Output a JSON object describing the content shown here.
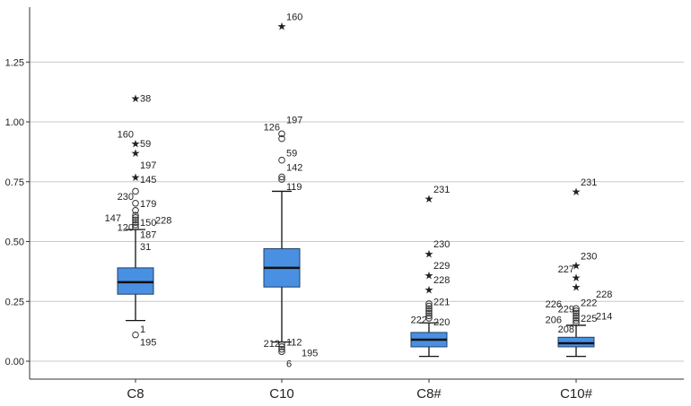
{
  "chart_data": {
    "type": "boxplot",
    "title": "",
    "xlabel": "",
    "ylabel": "",
    "ylim": [
      -0.05,
      1.45
    ],
    "yticks": [
      0.0,
      0.25,
      0.5,
      0.75,
      1.0,
      1.25
    ],
    "ytick_labels": [
      "0.00",
      "0.25",
      "0.50",
      "0.75",
      "1.00",
      "1.25"
    ],
    "grid": true,
    "categories": [
      "C8",
      "C10",
      "C8#",
      "C10#"
    ],
    "box_color": "#4a90e2",
    "boxes": [
      {
        "name": "C8",
        "q1": 0.28,
        "median": 0.33,
        "q3": 0.39,
        "whisker_low": 0.17,
        "whisker_high": 0.55,
        "circle_outliers": [
          0.11,
          0.56,
          0.57,
          0.58,
          0.59,
          0.6,
          0.61,
          0.63,
          0.66,
          0.71
        ],
        "star_outliers": [
          0.77,
          0.87,
          0.91,
          1.1
        ],
        "labels": [
          {
            "text": "38",
            "y": 1.1,
            "side": "right"
          },
          {
            "text": "160",
            "y": 0.95,
            "side": "left"
          },
          {
            "text": "59",
            "y": 0.91,
            "side": "right"
          },
          {
            "text": "197",
            "y": 0.82,
            "side": "right"
          },
          {
            "text": "145",
            "y": 0.76,
            "side": "right"
          },
          {
            "text": "230",
            "y": 0.69,
            "side": "left"
          },
          {
            "text": "179",
            "y": 0.66,
            "side": "right"
          },
          {
            "text": "147",
            "y": 0.6,
            "side": "farleft"
          },
          {
            "text": "228",
            "y": 0.59,
            "side": "far"
          },
          {
            "text": "150",
            "y": 0.58,
            "side": "right"
          },
          {
            "text": "120",
            "y": 0.56,
            "side": "left"
          },
          {
            "text": "187",
            "y": 0.53,
            "side": "right"
          },
          {
            "text": "31",
            "y": 0.48,
            "side": "right"
          },
          {
            "text": "1",
            "y": 0.135,
            "side": "right"
          },
          {
            "text": "195",
            "y": 0.08,
            "side": "right"
          }
        ]
      },
      {
        "name": "C10",
        "q1": 0.31,
        "median": 0.39,
        "q3": 0.47,
        "whisker_low": 0.08,
        "whisker_high": 0.71,
        "circle_outliers": [
          0.04,
          0.05,
          0.06,
          0.07,
          0.76,
          0.77,
          0.84,
          0.93,
          0.95
        ],
        "star_outliers": [
          1.4
        ],
        "labels": [
          {
            "text": "160",
            "y": 1.44,
            "side": "right"
          },
          {
            "text": "126",
            "y": 0.98,
            "side": "left"
          },
          {
            "text": "197",
            "y": 1.01,
            "side": "right"
          },
          {
            "text": "59",
            "y": 0.87,
            "side": "right"
          },
          {
            "text": "142",
            "y": 0.81,
            "side": "right"
          },
          {
            "text": "119",
            "y": 0.73,
            "side": "right"
          },
          {
            "text": "212",
            "y": 0.075,
            "side": "left"
          },
          {
            "text": "112",
            "y": 0.08,
            "side": "right"
          },
          {
            "text": "195",
            "y": 0.035,
            "side": "far"
          },
          {
            "text": "6",
            "y": -0.01,
            "side": "right"
          }
        ]
      },
      {
        "name": "C8#",
        "q1": 0.06,
        "median": 0.09,
        "q3": 0.12,
        "whisker_low": 0.02,
        "whisker_high": 0.16,
        "circle_outliers": [
          0.18,
          0.19,
          0.2,
          0.21,
          0.22,
          0.23,
          0.24
        ],
        "star_outliers": [
          0.3,
          0.36,
          0.45,
          0.68
        ],
        "labels": [
          {
            "text": "231",
            "y": 0.72,
            "side": "right"
          },
          {
            "text": "230",
            "y": 0.49,
            "side": "right"
          },
          {
            "text": "229",
            "y": 0.4,
            "side": "right"
          },
          {
            "text": "228",
            "y": 0.34,
            "side": "right"
          },
          {
            "text": "221",
            "y": 0.25,
            "side": "right"
          },
          {
            "text": "222",
            "y": 0.175,
            "side": "left"
          },
          {
            "text": "220",
            "y": 0.165,
            "side": "right"
          }
        ]
      },
      {
        "name": "C10#",
        "q1": 0.06,
        "median": 0.075,
        "q3": 0.1,
        "whisker_low": 0.02,
        "whisker_high": 0.15,
        "circle_outliers": [
          0.16,
          0.17,
          0.18,
          0.19,
          0.2,
          0.21,
          0.22
        ],
        "star_outliers": [
          0.31,
          0.35,
          0.4,
          0.71
        ],
        "labels": [
          {
            "text": "231",
            "y": 0.75,
            "side": "right"
          },
          {
            "text": "230",
            "y": 0.44,
            "side": "right"
          },
          {
            "text": "227",
            "y": 0.385,
            "side": "left"
          },
          {
            "text": "228",
            "y": 0.28,
            "side": "far"
          },
          {
            "text": "226",
            "y": 0.24,
            "side": "farleft"
          },
          {
            "text": "222",
            "y": 0.245,
            "side": "right"
          },
          {
            "text": "229",
            "y": 0.22,
            "side": "left"
          },
          {
            "text": "206",
            "y": 0.175,
            "side": "farleft"
          },
          {
            "text": "225",
            "y": 0.18,
            "side": "right"
          },
          {
            "text": "214",
            "y": 0.19,
            "side": "far"
          },
          {
            "text": "208",
            "y": 0.135,
            "side": "left"
          }
        ]
      }
    ]
  }
}
